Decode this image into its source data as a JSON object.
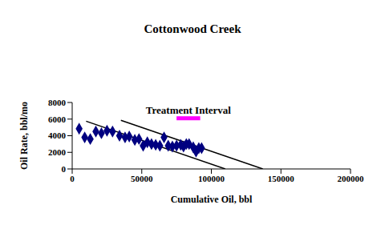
{
  "chart_data": {
    "type": "scatter",
    "title": "Cottonwood Creek",
    "x_label": "Cumulative Oil, bbl",
    "y_label": "Oil Rate, bbl/mo",
    "x": [
      5000,
      9000,
      13000,
      17000,
      21000,
      25000,
      29000,
      34000,
      38000,
      41000,
      45000,
      48000,
      51000,
      54000,
      57000,
      60000,
      63000,
      66000,
      69000,
      72000,
      75000,
      78000,
      80000,
      82000,
      84000,
      87000,
      89000,
      91000,
      93000
    ],
    "values": [
      4850,
      3800,
      3600,
      4500,
      4300,
      4600,
      4500,
      4000,
      3800,
      3900,
      3500,
      3600,
      2800,
      3200,
      3000,
      2900,
      2800,
      3800,
      2800,
      2700,
      2800,
      2900,
      2700,
      3000,
      3000,
      2600,
      2100,
      2500,
      2500
    ],
    "color": "#000080",
    "marker": "diamond",
    "xlim": [
      0,
      200000
    ],
    "xticks": [
      0,
      50000,
      100000,
      150000,
      200000
    ],
    "ylim": [
      0,
      8000
    ],
    "yticks": [
      0,
      2000,
      4000,
      6000,
      8000
    ],
    "grid": false,
    "trend_lines": [
      {
        "x": [
          10000,
          110000
        ],
        "values": [
          5750,
          0
        ],
        "color": "#000000"
      },
      {
        "x": [
          35000,
          137000
        ],
        "values": [
          5850,
          0
        ],
        "color": "#000000"
      }
    ],
    "annotation": {
      "text": "Treatment Interval",
      "x": [
        75000,
        92000
      ],
      "y": 6100,
      "color": "#ff00ff"
    }
  }
}
